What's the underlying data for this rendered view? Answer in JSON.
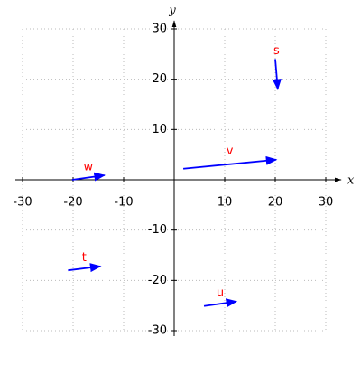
{
  "chart_data": {
    "type": "vector",
    "x_label": "x",
    "y_label": "y",
    "xlim": [
      -30,
      30
    ],
    "ylim": [
      -30,
      30
    ],
    "xticks": [
      -30,
      -20,
      -10,
      10,
      20,
      30
    ],
    "yticks": [
      -30,
      -20,
      -10,
      10,
      20,
      30
    ],
    "grid": true,
    "arrow_color": "#0000ff",
    "label_color": "#ff0000",
    "vectors": [
      {
        "name": "s",
        "start": [
          20,
          24
        ],
        "end": [
          20.5,
          18
        ]
      },
      {
        "name": "v",
        "start": [
          1.8,
          2.2
        ],
        "end": [
          20.2,
          4
        ]
      },
      {
        "name": "w",
        "start": [
          -20.2,
          0
        ],
        "end": [
          -13.8,
          0.9
        ]
      },
      {
        "name": "t",
        "start": [
          -21,
          -18
        ],
        "end": [
          -14.6,
          -17.2
        ]
      },
      {
        "name": "u",
        "start": [
          5.9,
          -25.1
        ],
        "end": [
          12.3,
          -24.2
        ]
      }
    ]
  }
}
